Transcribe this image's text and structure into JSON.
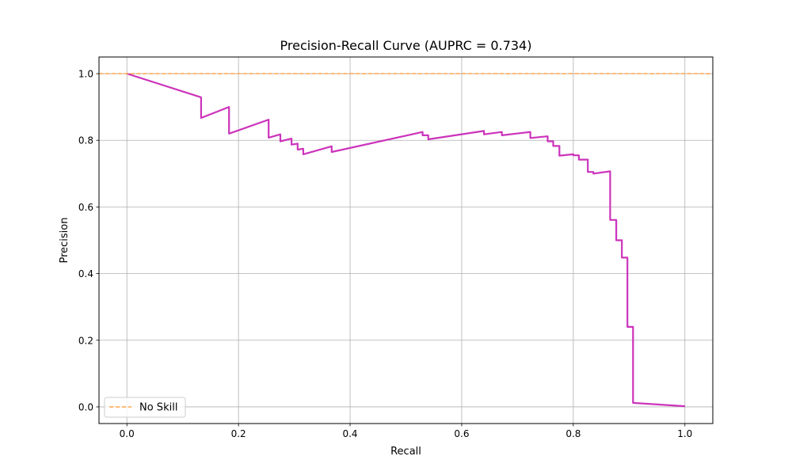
{
  "chart_data": {
    "type": "line",
    "title": "Precision-Recall Curve (AUPRC = 0.734)",
    "xlabel": "Recall",
    "ylabel": "Precision",
    "xlim": [
      -0.05,
      1.05
    ],
    "ylim": [
      -0.05,
      1.05
    ],
    "xticks": [
      0.0,
      0.2,
      0.4,
      0.6,
      0.8,
      1.0
    ],
    "yticks": [
      0.0,
      0.2,
      0.4,
      0.6,
      0.8,
      1.0
    ],
    "xtick_labels": [
      "0.0",
      "0.2",
      "0.4",
      "0.6",
      "0.8",
      "1.0"
    ],
    "ytick_labels": [
      "0.0",
      "0.2",
      "0.4",
      "0.6",
      "0.8",
      "1.0"
    ],
    "grid": true,
    "legend_position": "bottom-left",
    "series": [
      {
        "name": "",
        "color": "#cc33bb",
        "line_style": "solid",
        "points": [
          [
            0.0,
            1.0
          ],
          [
            0.133,
            0.929
          ],
          [
            0.133,
            0.867
          ],
          [
            0.183,
            0.9
          ],
          [
            0.183,
            0.82
          ],
          [
            0.254,
            0.862
          ],
          [
            0.254,
            0.808
          ],
          [
            0.275,
            0.818
          ],
          [
            0.275,
            0.797
          ],
          [
            0.295,
            0.805
          ],
          [
            0.295,
            0.787
          ],
          [
            0.306,
            0.79
          ],
          [
            0.306,
            0.772
          ],
          [
            0.316,
            0.775
          ],
          [
            0.316,
            0.758
          ],
          [
            0.367,
            0.782
          ],
          [
            0.367,
            0.765
          ],
          [
            0.53,
            0.825
          ],
          [
            0.53,
            0.815
          ],
          [
            0.54,
            0.815
          ],
          [
            0.54,
            0.803
          ],
          [
            0.64,
            0.828
          ],
          [
            0.64,
            0.818
          ],
          [
            0.672,
            0.825
          ],
          [
            0.672,
            0.815
          ],
          [
            0.723,
            0.825
          ],
          [
            0.723,
            0.807
          ],
          [
            0.754,
            0.812
          ],
          [
            0.754,
            0.797
          ],
          [
            0.764,
            0.797
          ],
          [
            0.764,
            0.783
          ],
          [
            0.775,
            0.783
          ],
          [
            0.775,
            0.754
          ],
          [
            0.8,
            0.758
          ],
          [
            0.8,
            0.755
          ],
          [
            0.81,
            0.755
          ],
          [
            0.81,
            0.742
          ],
          [
            0.82,
            0.742
          ],
          [
            0.82,
            0.742
          ],
          [
            0.826,
            0.742
          ],
          [
            0.826,
            0.705
          ],
          [
            0.836,
            0.705
          ],
          [
            0.836,
            0.7
          ],
          [
            0.866,
            0.707
          ],
          [
            0.866,
            0.561
          ],
          [
            0.877,
            0.561
          ],
          [
            0.877,
            0.5
          ],
          [
            0.887,
            0.5
          ],
          [
            0.887,
            0.448
          ],
          [
            0.897,
            0.448
          ],
          [
            0.897,
            0.24
          ],
          [
            0.907,
            0.24
          ],
          [
            0.907,
            0.012
          ],
          [
            1.0,
            0.002
          ]
        ]
      },
      {
        "name": "No Skill",
        "color": "#ffa64d",
        "line_style": "dashed",
        "points": [
          [
            -0.05,
            1.0
          ],
          [
            1.05,
            1.0
          ]
        ]
      }
    ]
  }
}
